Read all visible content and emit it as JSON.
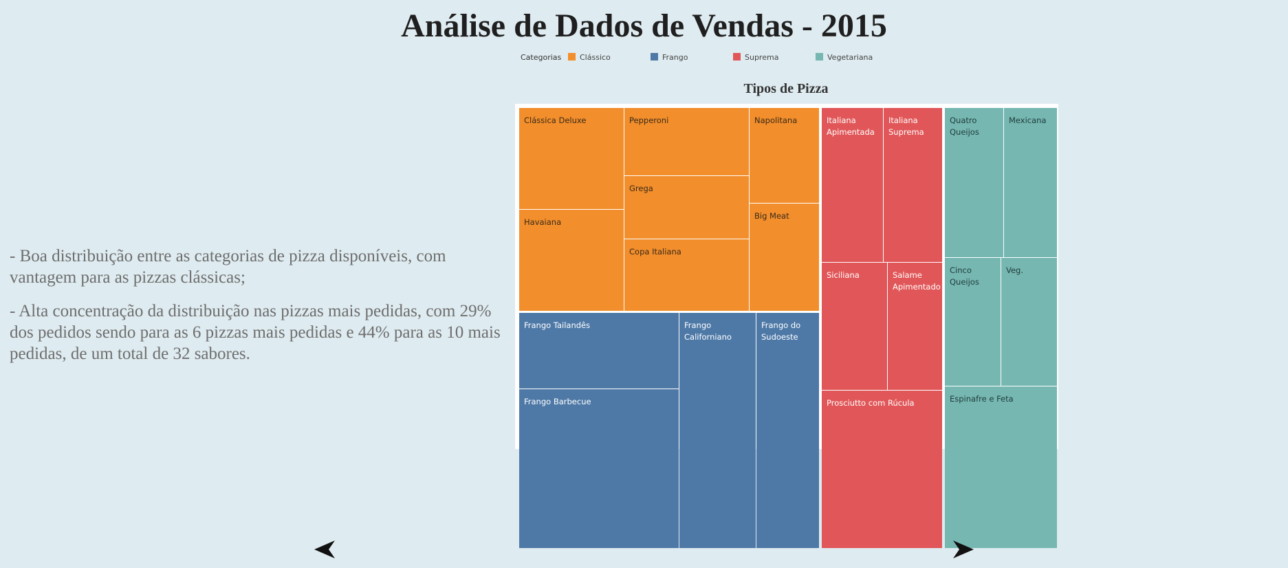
{
  "title": "Análise de Dados de Vendas - 2015",
  "legend": {
    "title": "Categorias",
    "items": [
      {
        "label": "Clássico",
        "color": "#f28e2b"
      },
      {
        "label": "Frango",
        "color": "#4e79a7"
      },
      {
        "label": "Suprema",
        "color": "#e15759"
      },
      {
        "label": "Vegetariana",
        "color": "#76b7b2"
      }
    ]
  },
  "insights": [
    "- Boa distribuição entre as categorias de pizza disponíveis, com vantagem para as pizzas clássicas;",
    "- Alta concentração da distribuição nas pizzas mais pedidas, com 29% dos pedidos sendo para as 6 pizzas mais pedidas e 44% para as 10 mais pedidas, de um total de 32 sabores."
  ],
  "chart_data": {
    "type": "treemap",
    "title": "Tipos de Pizza",
    "categories": [
      {
        "name": "Clássico",
        "color": "#f28e2b",
        "text_color": "#3a2a1a",
        "items": [
          "Clássica Deluxe",
          "Pepperoni",
          "Napolitana",
          "Havaiana",
          "Grega",
          "Big Meat",
          "Copa Italiana"
        ]
      },
      {
        "name": "Frango",
        "color": "#4e79a7",
        "text_color": "#ffffff",
        "items": [
          "Frango Tailandês",
          "Frango Californiano",
          "Frango do Sudoeste",
          "Frango Barbecue"
        ]
      },
      {
        "name": "Suprema",
        "color": "#e15759",
        "text_color": "#ffffff",
        "items": [
          "Italiana Apimentada",
          "Italiana Suprema",
          "Siciliana",
          "Salame Apimentado",
          "Prosciutto com Rúcula"
        ]
      },
      {
        "name": "Vegetariana",
        "color": "#76b7b2",
        "text_color": "#1f3b3a",
        "items": [
          "Quatro Queijos",
          "Mexicana",
          "Cinco Queijos",
          "Veg.",
          "Espinafre e Feta"
        ]
      }
    ]
  },
  "nav": {
    "prev_icon": "triangle-left-icon",
    "next_icon": "triangle-right-icon"
  }
}
